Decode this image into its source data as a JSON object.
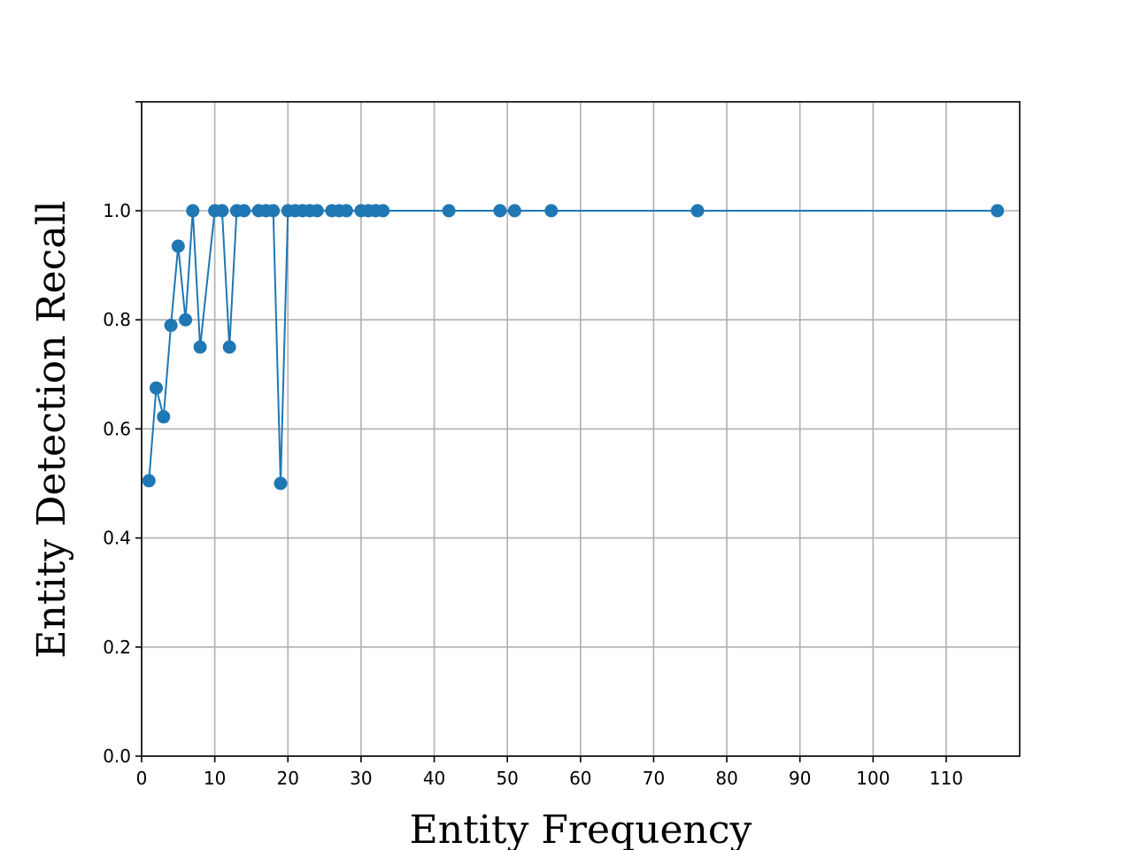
{
  "chart_data": {
    "type": "line",
    "xlabel": "Entity Frequency",
    "ylabel": "Entity Detection Recall",
    "xlim": [
      0,
      120
    ],
    "ylim": [
      0,
      1.2
    ],
    "grid": true,
    "marker": "circle",
    "color": "#1f77b4",
    "x_ticks": [
      "0",
      "10",
      "20",
      "30",
      "40",
      "50",
      "60",
      "70",
      "80",
      "90",
      "100",
      "110"
    ],
    "y_ticks": [
      "0.0",
      "0.2",
      "0.4",
      "0.6",
      "0.8",
      "1.0"
    ],
    "x": [
      1,
      2,
      3,
      4,
      5,
      6,
      7,
      8,
      10,
      11,
      12,
      13,
      14,
      16,
      17,
      18,
      19,
      20,
      21,
      22,
      23,
      24,
      26,
      27,
      28,
      30,
      31,
      32,
      33,
      42,
      49,
      51,
      56,
      76,
      117
    ],
    "y": [
      0.505,
      0.675,
      0.622,
      0.79,
      0.935,
      0.8,
      1.0,
      0.75,
      1.0,
      1.0,
      0.75,
      1.0,
      1.0,
      1.0,
      1.0,
      1.0,
      0.5,
      1.0,
      1.0,
      1.0,
      1.0,
      1.0,
      1.0,
      1.0,
      1.0,
      1.0,
      1.0,
      1.0,
      1.0,
      1.0,
      1.0,
      1.0,
      1.0,
      1.0,
      1.0
    ]
  }
}
